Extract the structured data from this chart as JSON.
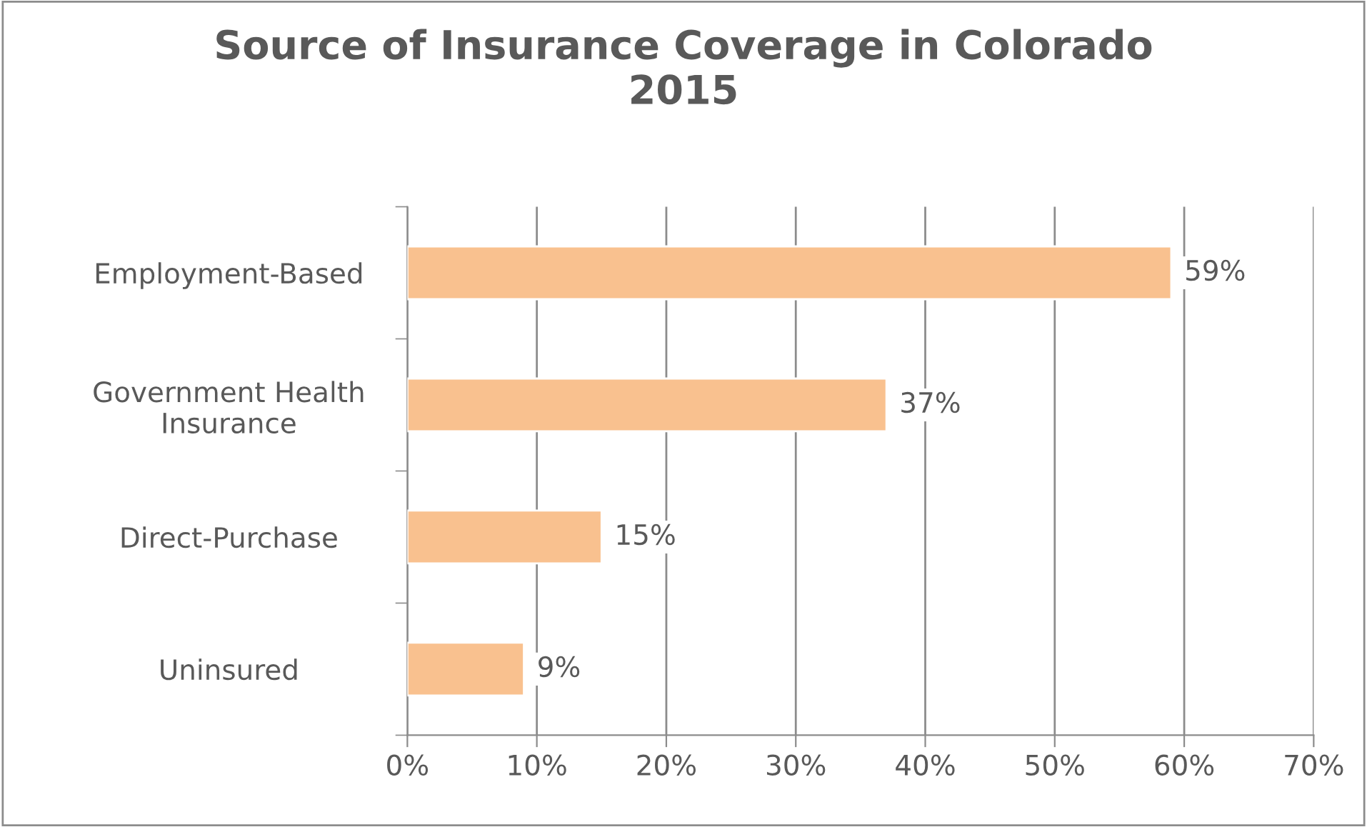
{
  "chart_data": {
    "type": "bar",
    "orientation": "horizontal",
    "title": "Source of Insurance Coverage in Colorado\n2015",
    "categories": [
      "Employment-Based",
      "Government Health\nInsurance",
      "Direct-Purchase",
      "Uninsured"
    ],
    "values": [
      59,
      37,
      15,
      9
    ],
    "value_labels": [
      "59%",
      "37%",
      "15%",
      "9%"
    ],
    "color": "#f9c18f",
    "xlim": [
      0,
      70
    ],
    "xticks": [
      {
        "value": 0,
        "label": "0%"
      },
      {
        "value": 10,
        "label": "10%"
      },
      {
        "value": 20,
        "label": "20%"
      },
      {
        "value": 30,
        "label": "30%"
      },
      {
        "value": 40,
        "label": "40%"
      },
      {
        "value": 50,
        "label": "50%"
      },
      {
        "value": 60,
        "label": "60%"
      },
      {
        "value": 70,
        "label": "70%"
      }
    ],
    "grid": "x"
  }
}
